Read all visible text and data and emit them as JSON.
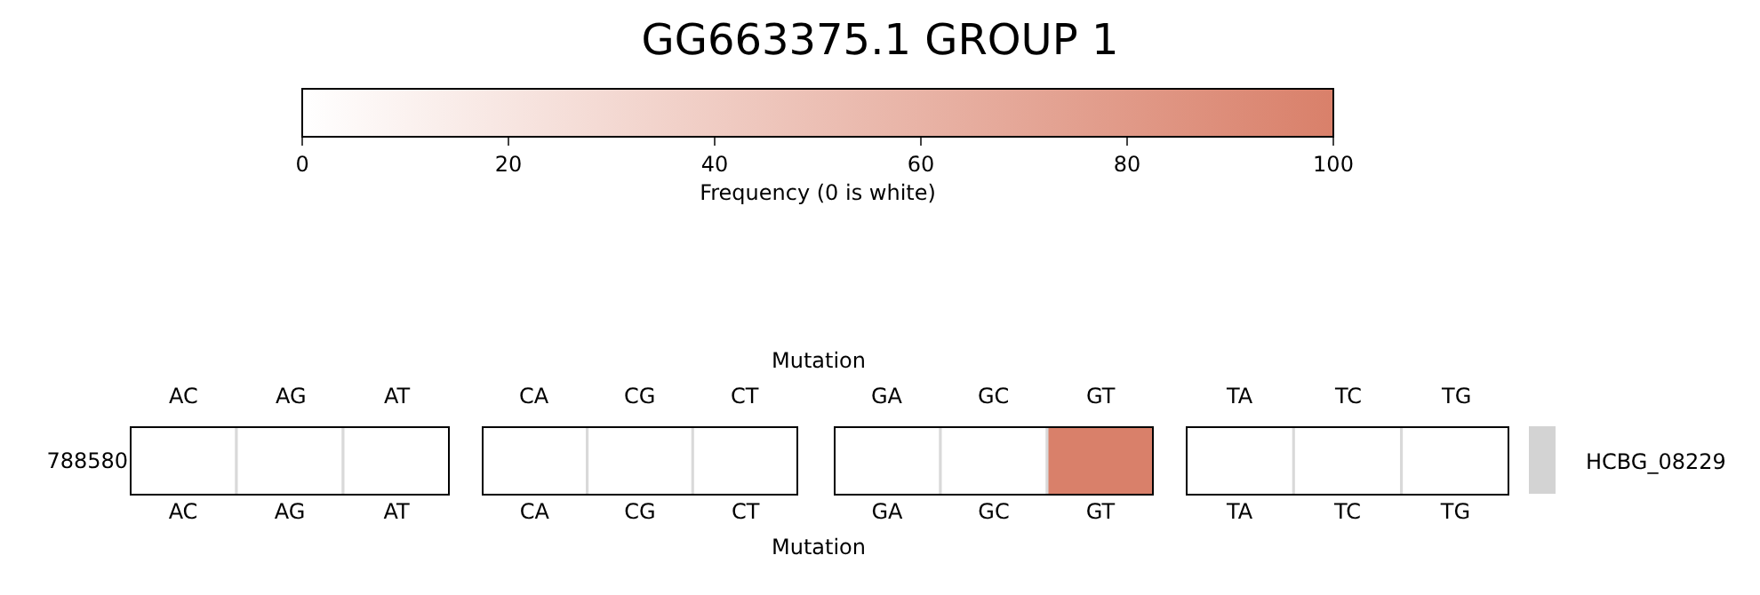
{
  "chart_data": {
    "type": "heatmap",
    "title": "GG663375.1 GROUP 1",
    "xlabel": "Mutation",
    "clabel": "Frequency (0 is white)",
    "clim": [
      0,
      100
    ],
    "cticks": [
      0,
      20,
      40,
      60,
      80,
      100
    ],
    "categories": [
      "AC",
      "AG",
      "AT",
      "CA",
      "CG",
      "CT",
      "GA",
      "GC",
      "GT",
      "TA",
      "TC",
      "TG"
    ],
    "y_categories": [
      "788580"
    ],
    "y2_categories": [
      "HCBG_08229"
    ],
    "cells": [
      [
        0,
        0,
        0,
        0,
        0,
        0,
        0,
        0,
        100,
        0,
        0,
        0
      ]
    ]
  }
}
